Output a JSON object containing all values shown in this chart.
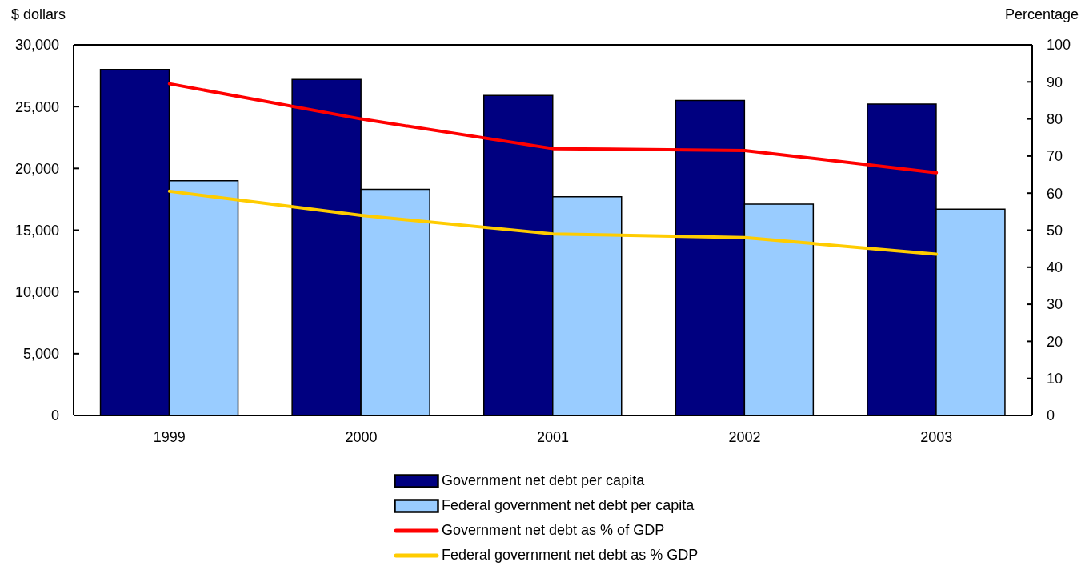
{
  "chart_data": {
    "type": "bar",
    "ylabel": "$ dollars",
    "y2label": "Percentage",
    "categories": [
      "1999",
      "2000",
      "2001",
      "2002",
      "2003"
    ],
    "series": [
      {
        "name": "Government net debt per capita",
        "color": "#000080",
        "values": [
          28000,
          27200,
          25900,
          25500,
          25200
        ]
      },
      {
        "name": "Federal government net debt per capita",
        "color": "#99ccff",
        "values": [
          19000,
          18300,
          17700,
          17100,
          16700
        ]
      },
      {
        "name": "Government net debt as % of GDP",
        "type": "line",
        "axis": "y2",
        "color": "#ff0000",
        "values": [
          89.5,
          80,
          72,
          71.5,
          65.5
        ]
      },
      {
        "name": "Federal government net debt as % GDP",
        "type": "line",
        "axis": "y2",
        "color": "#ffcc00",
        "values": [
          60.5,
          54,
          49,
          48,
          43.5
        ]
      }
    ],
    "ylim": [
      0,
      30000
    ],
    "yticks": [
      {
        "value": 0,
        "label": "0"
      },
      {
        "value": 5000,
        "label": "5,000"
      },
      {
        "value": 10000,
        "label": "10,000"
      },
      {
        "value": 15000,
        "label": "15,000"
      },
      {
        "value": 20000,
        "label": "20,000"
      },
      {
        "value": 25000,
        "label": "25,000"
      },
      {
        "value": 30000,
        "label": "30,000"
      }
    ],
    "y2lim": [
      0,
      100
    ],
    "y2ticks": [
      0,
      10,
      20,
      30,
      40,
      50,
      60,
      70,
      80,
      90,
      100
    ],
    "legend": "bottom",
    "marker": "none",
    "line_style": "solid"
  }
}
